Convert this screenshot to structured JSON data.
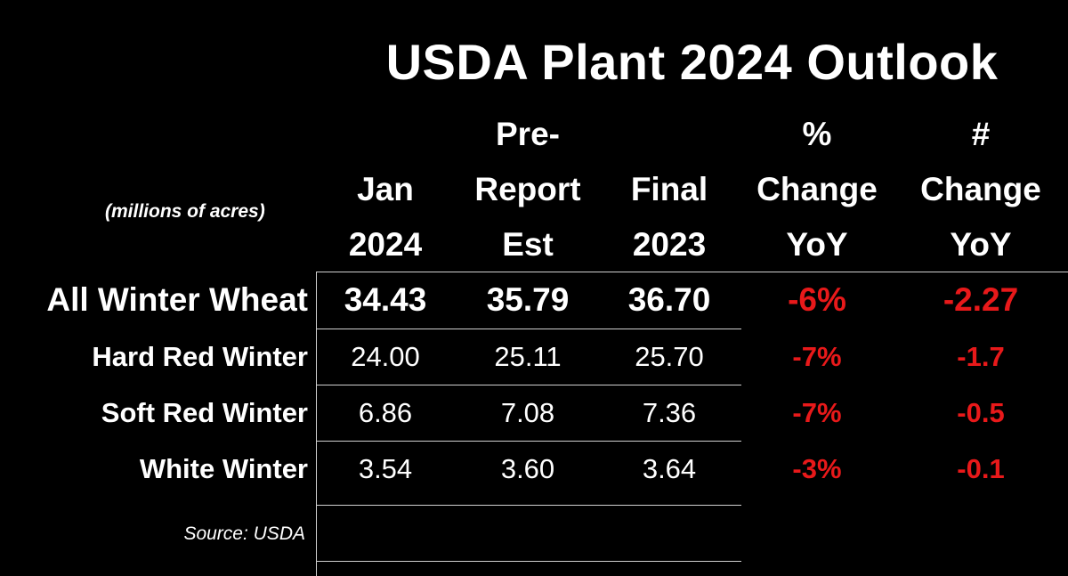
{
  "chart_data": {
    "type": "table",
    "title": "USDA Plant 2024 Outlook",
    "units_note": "(millions of acres)",
    "source": "Source: USDA",
    "columns": [
      {
        "key": "jan2024",
        "lines": [
          "Jan",
          "2024"
        ]
      },
      {
        "key": "pre_report_est",
        "lines": [
          "Pre-",
          "Report",
          "Est"
        ]
      },
      {
        "key": "final2023",
        "lines": [
          "Final",
          "2023"
        ]
      },
      {
        "key": "pct_change_yoy",
        "lines": [
          "%",
          "Change",
          "YoY"
        ]
      },
      {
        "key": "num_change_yoy",
        "lines": [
          "#",
          "Change",
          "YoY"
        ]
      }
    ],
    "rows": [
      {
        "label": "All Winter Wheat",
        "jan2024": "34.43",
        "pre_report_est": "35.79",
        "final2023": "36.70",
        "pct_change_yoy": "-6%",
        "num_change_yoy": "-2.27"
      },
      {
        "label": "Hard Red Winter",
        "jan2024": "24.00",
        "pre_report_est": "25.11",
        "final2023": "25.70",
        "pct_change_yoy": "-7%",
        "num_change_yoy": "-1.7"
      },
      {
        "label": "Soft Red Winter",
        "jan2024": "6.86",
        "pre_report_est": "7.08",
        "final2023": "7.36",
        "pct_change_yoy": "-7%",
        "num_change_yoy": "-0.5"
      },
      {
        "label": "White Winter",
        "jan2024": "3.54",
        "pre_report_est": "3.60",
        "final2023": "3.64",
        "pct_change_yoy": "-3%",
        "num_change_yoy": "-0.1"
      }
    ]
  },
  "colors": {
    "background": "#000000",
    "text": "#ffffff",
    "negative": "#e8191a",
    "grid": "#d0d0d0"
  }
}
